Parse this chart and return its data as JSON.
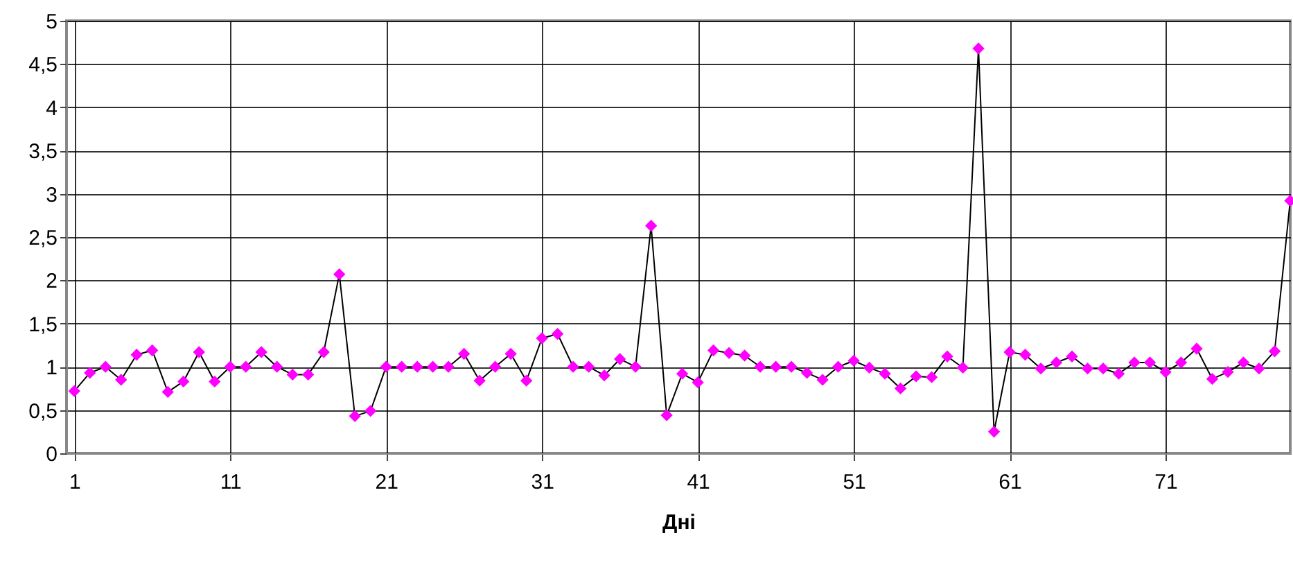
{
  "chart_data": {
    "type": "line",
    "xlabel": "Дні",
    "x": [
      1,
      2,
      3,
      4,
      5,
      6,
      7,
      8,
      9,
      10,
      11,
      12,
      13,
      14,
      15,
      16,
      17,
      18,
      19,
      20,
      21,
      22,
      23,
      24,
      25,
      26,
      27,
      28,
      29,
      30,
      31,
      32,
      33,
      34,
      35,
      36,
      37,
      38,
      39,
      40,
      41,
      42,
      43,
      44,
      45,
      46,
      47,
      48,
      49,
      50,
      51,
      52,
      53,
      54,
      55,
      56,
      57,
      58,
      59,
      60,
      61,
      62,
      63,
      64,
      65,
      66,
      67,
      68,
      69,
      70,
      71,
      72,
      73,
      74,
      75,
      76,
      77,
      78,
      79
    ],
    "series": [
      {
        "color": "#ff00ff",
        "values": [
          0.72,
          0.93,
          1.0,
          0.85,
          1.14,
          1.19,
          0.71,
          0.83,
          1.17,
          0.83,
          1.0,
          1.0,
          1.17,
          1.0,
          0.91,
          0.91,
          1.17,
          2.07,
          0.43,
          0.49,
          1.0,
          1.0,
          1.0,
          1.0,
          1.0,
          1.15,
          0.84,
          1.0,
          1.15,
          0.84,
          1.33,
          1.38,
          1.0,
          1.0,
          0.9,
          1.09,
          1.0,
          2.63,
          0.44,
          0.92,
          0.82,
          1.19,
          1.16,
          1.13,
          1.0,
          1.0,
          1.0,
          0.93,
          0.85,
          1.0,
          1.07,
          0.99,
          0.92,
          0.75,
          0.89,
          0.88,
          1.12,
          0.99,
          4.68,
          0.25,
          1.17,
          1.14,
          0.98,
          1.05,
          1.12,
          0.98,
          0.98,
          0.92,
          1.05,
          1.05,
          0.94,
          1.05,
          1.21,
          0.86,
          0.94,
          1.05,
          0.98,
          1.18,
          2.92
        ]
      }
    ],
    "xlim": [
      0.5,
      79
    ],
    "xticks": [
      1,
      11,
      21,
      31,
      41,
      51,
      61,
      71
    ],
    "ylim": [
      0,
      5
    ],
    "yticks": [
      0,
      {
        "value": 0.5,
        "label": "0,5"
      },
      1,
      {
        "value": 1.5,
        "label": "1,5"
      },
      2,
      {
        "value": 2.5,
        "label": "2,5"
      },
      3,
      {
        "value": 3.5,
        "label": "3,5"
      },
      4,
      {
        "value": 4.5,
        "label": "4,5"
      },
      5
    ],
    "grid": true,
    "marker": "diamond",
    "line_style": "solid"
  }
}
